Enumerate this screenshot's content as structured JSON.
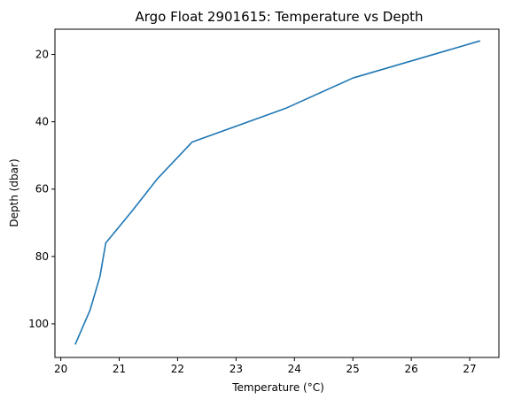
{
  "chart_data": {
    "type": "line",
    "title": "Argo Float 2901615: Temperature vs Depth",
    "xlabel": "Temperature (°C)",
    "ylabel": "Depth (dbar)",
    "xlim": [
      19.9,
      27.5
    ],
    "ylim": [
      110,
      12.5
    ],
    "y_inverted": true,
    "grid": false,
    "legend": "none",
    "xticks": [
      20,
      21,
      22,
      23,
      24,
      25,
      26,
      27
    ],
    "yticks": [
      20,
      40,
      60,
      80,
      100
    ],
    "series": [
      {
        "color": "#1f77b4",
        "points": [
          {
            "x": 20.25,
            "y": 106
          },
          {
            "x": 20.5,
            "y": 96
          },
          {
            "x": 20.67,
            "y": 86
          },
          {
            "x": 20.77,
            "y": 76
          },
          {
            "x": 21.22,
            "y": 66.5
          },
          {
            "x": 21.65,
            "y": 57
          },
          {
            "x": 22.25,
            "y": 46
          },
          {
            "x": 23.85,
            "y": 36
          },
          {
            "x": 25.0,
            "y": 27
          },
          {
            "x": 27.17,
            "y": 16
          }
        ]
      }
    ]
  }
}
